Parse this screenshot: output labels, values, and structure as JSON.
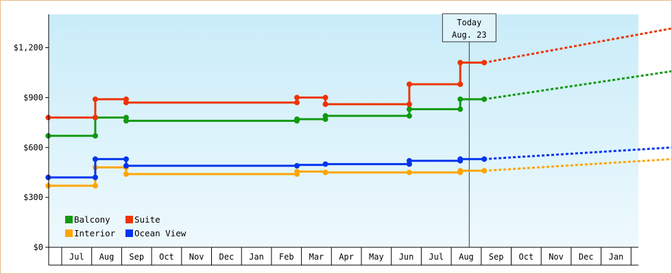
{
  "chart_data": {
    "type": "line",
    "ylim": [
      0,
      1400
    ],
    "y_ticks": [
      {
        "value": 0,
        "label": "$0"
      },
      {
        "value": 300,
        "label": "$300"
      },
      {
        "value": 600,
        "label": "$600"
      },
      {
        "value": 900,
        "label": "$900"
      },
      {
        "value": 1200,
        "label": "$1,200"
      }
    ],
    "x_months": [
      "Jul",
      "Aug",
      "Sep",
      "Oct",
      "Nov",
      "Dec",
      "Jan",
      "Feb",
      "Mar",
      "Apr",
      "May",
      "Jun",
      "Jul",
      "Aug",
      "Sep",
      "Oct",
      "Nov",
      "Dec",
      "Jan"
    ],
    "x_start_month_index": 0,
    "today": {
      "label_line1": "Today",
      "label_line2": "Aug. 23",
      "x": 13.6
    },
    "background": {
      "top_color": "#c9ecf9",
      "bottom_color": "#eef9fd"
    },
    "legend": {
      "placement": "bottom-left"
    },
    "series": [
      {
        "name": "Balcony",
        "color": "#119911",
        "points": [
          [
            -0.45,
            670
          ],
          [
            1.12,
            670
          ],
          [
            1.12,
            780
          ],
          [
            2.15,
            780
          ],
          [
            2.15,
            760
          ],
          [
            7.85,
            760
          ],
          [
            7.85,
            770
          ],
          [
            8.8,
            770
          ],
          [
            8.8,
            790
          ],
          [
            11.6,
            790
          ],
          [
            11.6,
            830
          ],
          [
            13.3,
            830
          ],
          [
            13.3,
            890
          ],
          [
            14.1,
            890
          ]
        ],
        "markers": [
          [
            -0.45,
            670
          ],
          [
            1.12,
            670
          ],
          [
            1.12,
            780
          ],
          [
            2.15,
            780
          ],
          [
            2.15,
            760
          ],
          [
            7.85,
            760
          ],
          [
            7.85,
            770
          ],
          [
            8.8,
            770
          ],
          [
            8.8,
            790
          ],
          [
            11.6,
            790
          ],
          [
            11.6,
            830
          ],
          [
            13.3,
            830
          ],
          [
            13.3,
            890
          ],
          [
            14.1,
            890
          ]
        ],
        "forecast": [
          [
            14.1,
            890
          ],
          [
            20.8,
            1070
          ]
        ]
      },
      {
        "name": "Suite",
        "color": "#ee3300",
        "points": [
          [
            -0.45,
            780
          ],
          [
            1.12,
            780
          ],
          [
            1.12,
            890
          ],
          [
            2.15,
            890
          ],
          [
            2.15,
            870
          ],
          [
            7.85,
            870
          ],
          [
            7.85,
            900
          ],
          [
            8.8,
            900
          ],
          [
            8.8,
            860
          ],
          [
            11.6,
            860
          ],
          [
            11.6,
            980
          ],
          [
            13.3,
            980
          ],
          [
            13.3,
            1110
          ],
          [
            14.1,
            1110
          ]
        ],
        "markers": [
          [
            -0.45,
            780
          ],
          [
            1.12,
            780
          ],
          [
            1.12,
            890
          ],
          [
            2.15,
            890
          ],
          [
            2.15,
            870
          ],
          [
            7.85,
            870
          ],
          [
            7.85,
            900
          ],
          [
            8.8,
            900
          ],
          [
            8.8,
            860
          ],
          [
            11.6,
            860
          ],
          [
            11.6,
            980
          ],
          [
            13.3,
            980
          ],
          [
            13.3,
            1110
          ],
          [
            14.1,
            1110
          ]
        ],
        "forecast": [
          [
            14.1,
            1110
          ],
          [
            20.8,
            1330
          ]
        ]
      },
      {
        "name": "Interior",
        "color": "#ffa500",
        "points": [
          [
            -0.45,
            370
          ],
          [
            1.12,
            370
          ],
          [
            1.12,
            480
          ],
          [
            2.15,
            480
          ],
          [
            2.15,
            440
          ],
          [
            7.85,
            440
          ],
          [
            7.85,
            455
          ],
          [
            8.8,
            455
          ],
          [
            8.8,
            450
          ],
          [
            11.6,
            450
          ],
          [
            11.6,
            450
          ],
          [
            13.3,
            450
          ],
          [
            13.3,
            460
          ],
          [
            14.1,
            460
          ]
        ],
        "markers": [
          [
            -0.45,
            370
          ],
          [
            1.12,
            370
          ],
          [
            1.12,
            480
          ],
          [
            2.15,
            480
          ],
          [
            2.15,
            440
          ],
          [
            7.85,
            440
          ],
          [
            7.85,
            455
          ],
          [
            8.8,
            450
          ],
          [
            11.6,
            450
          ],
          [
            13.3,
            450
          ],
          [
            13.3,
            460
          ],
          [
            14.1,
            460
          ]
        ],
        "forecast": [
          [
            14.1,
            460
          ],
          [
            20.8,
            535
          ]
        ]
      },
      {
        "name": "Ocean View",
        "color": "#0033ee",
        "points": [
          [
            -0.45,
            420
          ],
          [
            1.12,
            420
          ],
          [
            1.12,
            530
          ],
          [
            2.15,
            530
          ],
          [
            2.15,
            490
          ],
          [
            7.85,
            490
          ],
          [
            7.85,
            495
          ],
          [
            8.8,
            495
          ],
          [
            8.8,
            500
          ],
          [
            11.6,
            500
          ],
          [
            11.6,
            520
          ],
          [
            13.3,
            520
          ],
          [
            13.3,
            530
          ],
          [
            14.1,
            530
          ]
        ],
        "markers": [
          [
            -0.45,
            420
          ],
          [
            1.12,
            420
          ],
          [
            1.12,
            530
          ],
          [
            2.15,
            530
          ],
          [
            2.15,
            490
          ],
          [
            7.85,
            490
          ],
          [
            8.8,
            500
          ],
          [
            11.6,
            500
          ],
          [
            11.6,
            520
          ],
          [
            13.3,
            520
          ],
          [
            13.3,
            530
          ],
          [
            14.1,
            530
          ]
        ],
        "forecast": [
          [
            14.1,
            530
          ],
          [
            20.8,
            605
          ]
        ]
      }
    ]
  }
}
